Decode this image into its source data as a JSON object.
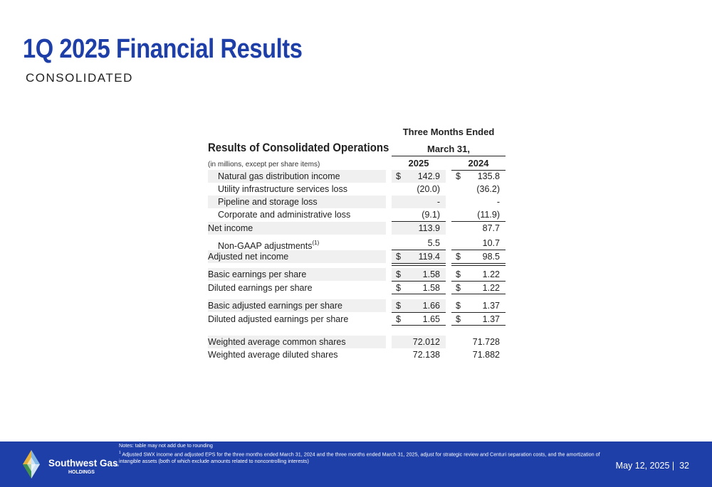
{
  "slide": {
    "title": "1Q 2025 Financial Results",
    "subtitle": "CONSOLIDATED"
  },
  "table": {
    "title": "Results of Consolidated Operations",
    "units": "(in millions, except per share items)",
    "period_header": "Three Months Ended",
    "month_header": "March 31,",
    "years": [
      "2025",
      "2024"
    ],
    "currency_symbol": "$",
    "rows": [
      {
        "label": "Natural gas distribution income",
        "v2025": "142.9",
        "v2024": "135.8"
      },
      {
        "label": "Utility infrastructure services loss",
        "v2025": "(20.0)",
        "v2024": "(36.2)"
      },
      {
        "label": "Pipeline and storage loss",
        "v2025": "-",
        "v2024": "-"
      },
      {
        "label": "Corporate and administrative loss",
        "v2025": "(9.1)",
        "v2024": "(11.9)"
      },
      {
        "label": "Net income",
        "v2025": "113.9",
        "v2024": "87.7"
      },
      {
        "label": "Non-GAAP adjustments",
        "footnote": "(1)",
        "v2025": "5.5",
        "v2024": "10.7"
      },
      {
        "label": "Adjusted net income",
        "v2025": "119.4",
        "v2024": "98.5"
      },
      {
        "label": "Basic earnings per share",
        "v2025": "1.58",
        "v2024": "1.22"
      },
      {
        "label": "Diluted earnings per share",
        "v2025": "1.58",
        "v2024": "1.22"
      },
      {
        "label": "Basic adjusted earnings per share",
        "v2025": "1.66",
        "v2024": "1.37"
      },
      {
        "label": "Diluted adjusted earnings per share",
        "v2025": "1.65",
        "v2024": "1.37"
      },
      {
        "label": "Weighted average common shares",
        "v2025": "72.012",
        "v2024": "71.728"
      },
      {
        "label": "Weighted average diluted shares",
        "v2025": "72.138",
        "v2024": "71.882"
      }
    ]
  },
  "footer": {
    "notes_line1": "Notes: table may not add due to rounding",
    "notes_line2_marker": "1",
    "notes_line2": "Adjusted SWX income and adjusted EPS for the three months ended March 31, 2024 and the three months ended March 31, 2025, adjust for strategic review and Centuri separation costs, and the amortization of intangible assets (both of which exclude amounts related to noncontrolling interests)",
    "logo_name": "Southwest Gas",
    "logo_sub": "HOLDINGS",
    "logo_tm": "TM",
    "date": "May 12, 2025",
    "page_number": "32",
    "brand_color": "#1f3fa8"
  }
}
